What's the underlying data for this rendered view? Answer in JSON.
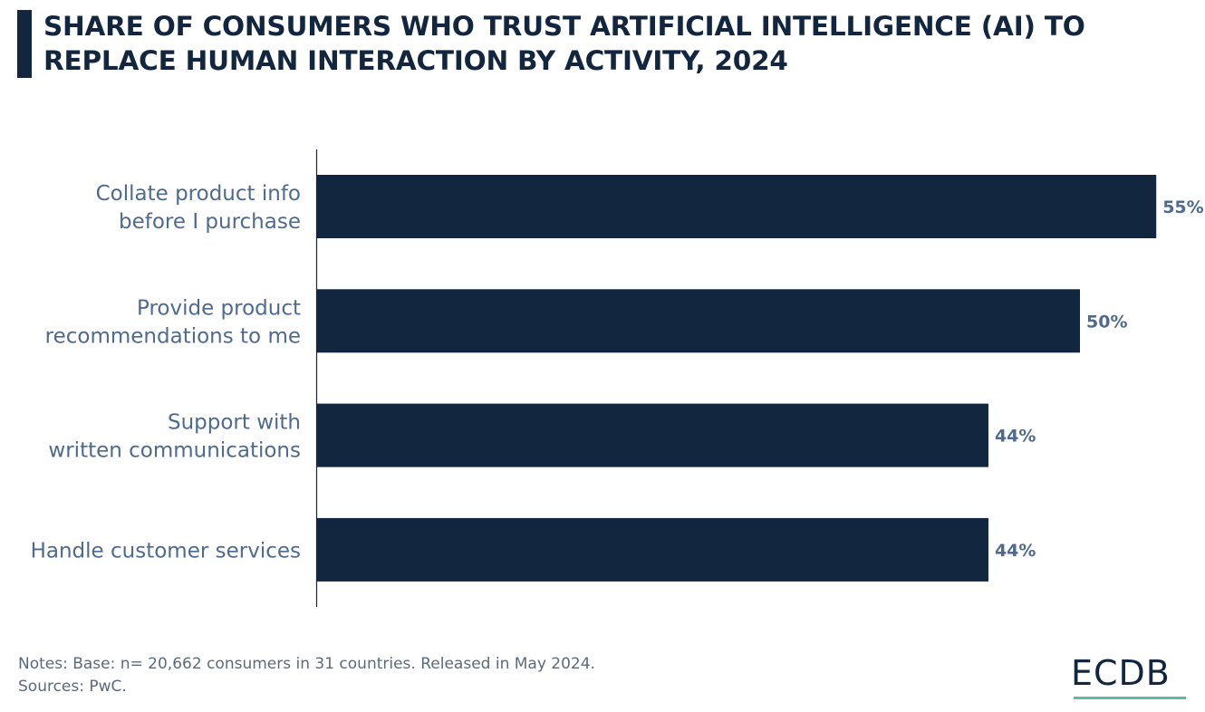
{
  "title": "SHARE OF CONSUMERS WHO TRUST ARTIFICIAL INTELLIGENCE (AI) TO REPLACE HUMAN INTERACTION BY ACTIVITY, 2024",
  "notes": {
    "line1": "Notes: Base: n= 20,662 consumers in 31 countries. Released in May 2024.",
    "line2": "Sources: PwC."
  },
  "logo": {
    "text": "ECDB"
  },
  "colors": {
    "bar": "#13263f",
    "category_label": "#4f6a8f",
    "value_label": "#4f6a8f",
    "title": "#13263f",
    "logo_accent": "#5fb9a4"
  },
  "chart_data": {
    "type": "bar",
    "orientation": "horizontal",
    "title": "SHARE OF CONSUMERS WHO TRUST ARTIFICIAL INTELLIGENCE (AI) TO REPLACE HUMAN INTERACTION BY ACTIVITY, 2024",
    "categories": [
      [
        "Collate product info",
        "before I purchase"
      ],
      [
        "Provide product",
        "recommendations to me"
      ],
      [
        "Support with",
        "written communications"
      ],
      [
        "Handle customer services"
      ]
    ],
    "values": [
      55,
      50,
      44,
      44
    ],
    "value_labels": [
      "55%",
      "50%",
      "44%",
      "44%"
    ],
    "unit": "%",
    "grid": false,
    "legend": false
  }
}
